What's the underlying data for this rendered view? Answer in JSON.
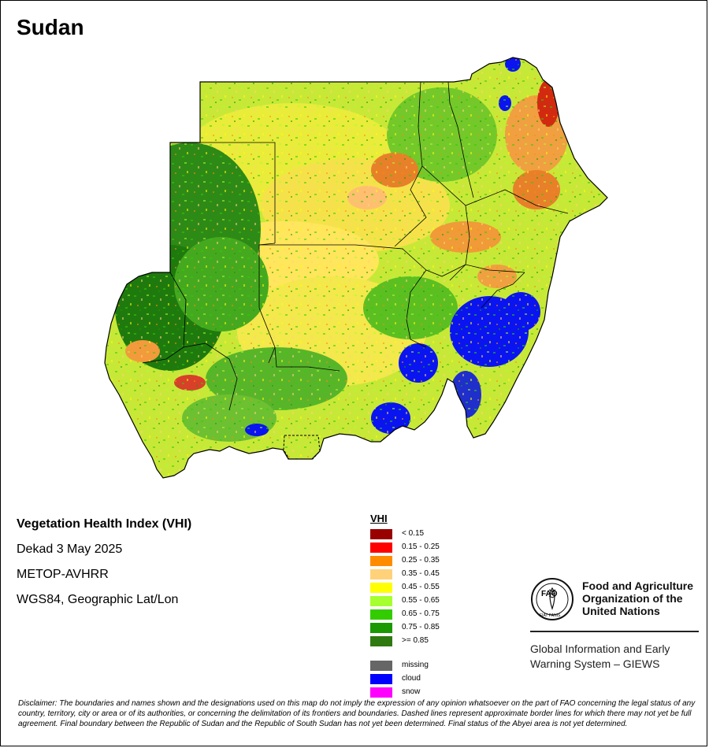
{
  "map": {
    "country": "Sudan"
  },
  "info": {
    "index_title": "Vegetation Health Index (VHI)",
    "period": "Dekad 3 May 2025",
    "sensor": "METOP-AVHRR",
    "projection": "WGS84, Geographic Lat/Lon"
  },
  "legend": {
    "title": "VHI",
    "classes": [
      {
        "label": "< 0.15",
        "color": "#990000"
      },
      {
        "label": "0.15 - 0.25",
        "color": "#ff0000"
      },
      {
        "label": "0.25 - 0.35",
        "color": "#ff8c00"
      },
      {
        "label": "0.35 - 0.45",
        "color": "#ffd27a"
      },
      {
        "label": "0.45 - 0.55",
        "color": "#ffff00"
      },
      {
        "label": "0.55 - 0.65",
        "color": "#a6ff2e"
      },
      {
        "label": "0.65 - 0.75",
        "color": "#33cc00"
      },
      {
        "label": "0.75 - 0.85",
        "color": "#1a9900"
      },
      {
        "label": ">= 0.85",
        "color": "#2e7a10"
      }
    ],
    "other_classes": [
      {
        "label": "missing",
        "color": "#666666"
      },
      {
        "label": "cloud",
        "color": "#0000ff"
      },
      {
        "label": "snow",
        "color": "#ff00ff"
      }
    ]
  },
  "logo": {
    "org_line1": "Food and Agriculture",
    "org_line2": "Organization of the",
    "org_line3": "United Nations",
    "emblem_text": "FAO",
    "emblem_motto": "FIAT PANIS",
    "giews_line1": "Global Information and Early",
    "giews_line2": "Warning System – GIEWS"
  },
  "disclaimer": "Disclaimer: The boundaries and names shown and the designations used on this map do not imply the expression of any opinion whatsoever on the part of FAO concerning the legal status of any country, territory, city or area or of its authorities, or concerning the delimitation of its frontiers and boundaries. Dashed lines represent approximate border lines for which there may not yet be full agreement.  Final boundary between the Republic of Sudan and the Republic of South Sudan has not yet been determined. Final status of the Abyei area is not yet determined."
}
